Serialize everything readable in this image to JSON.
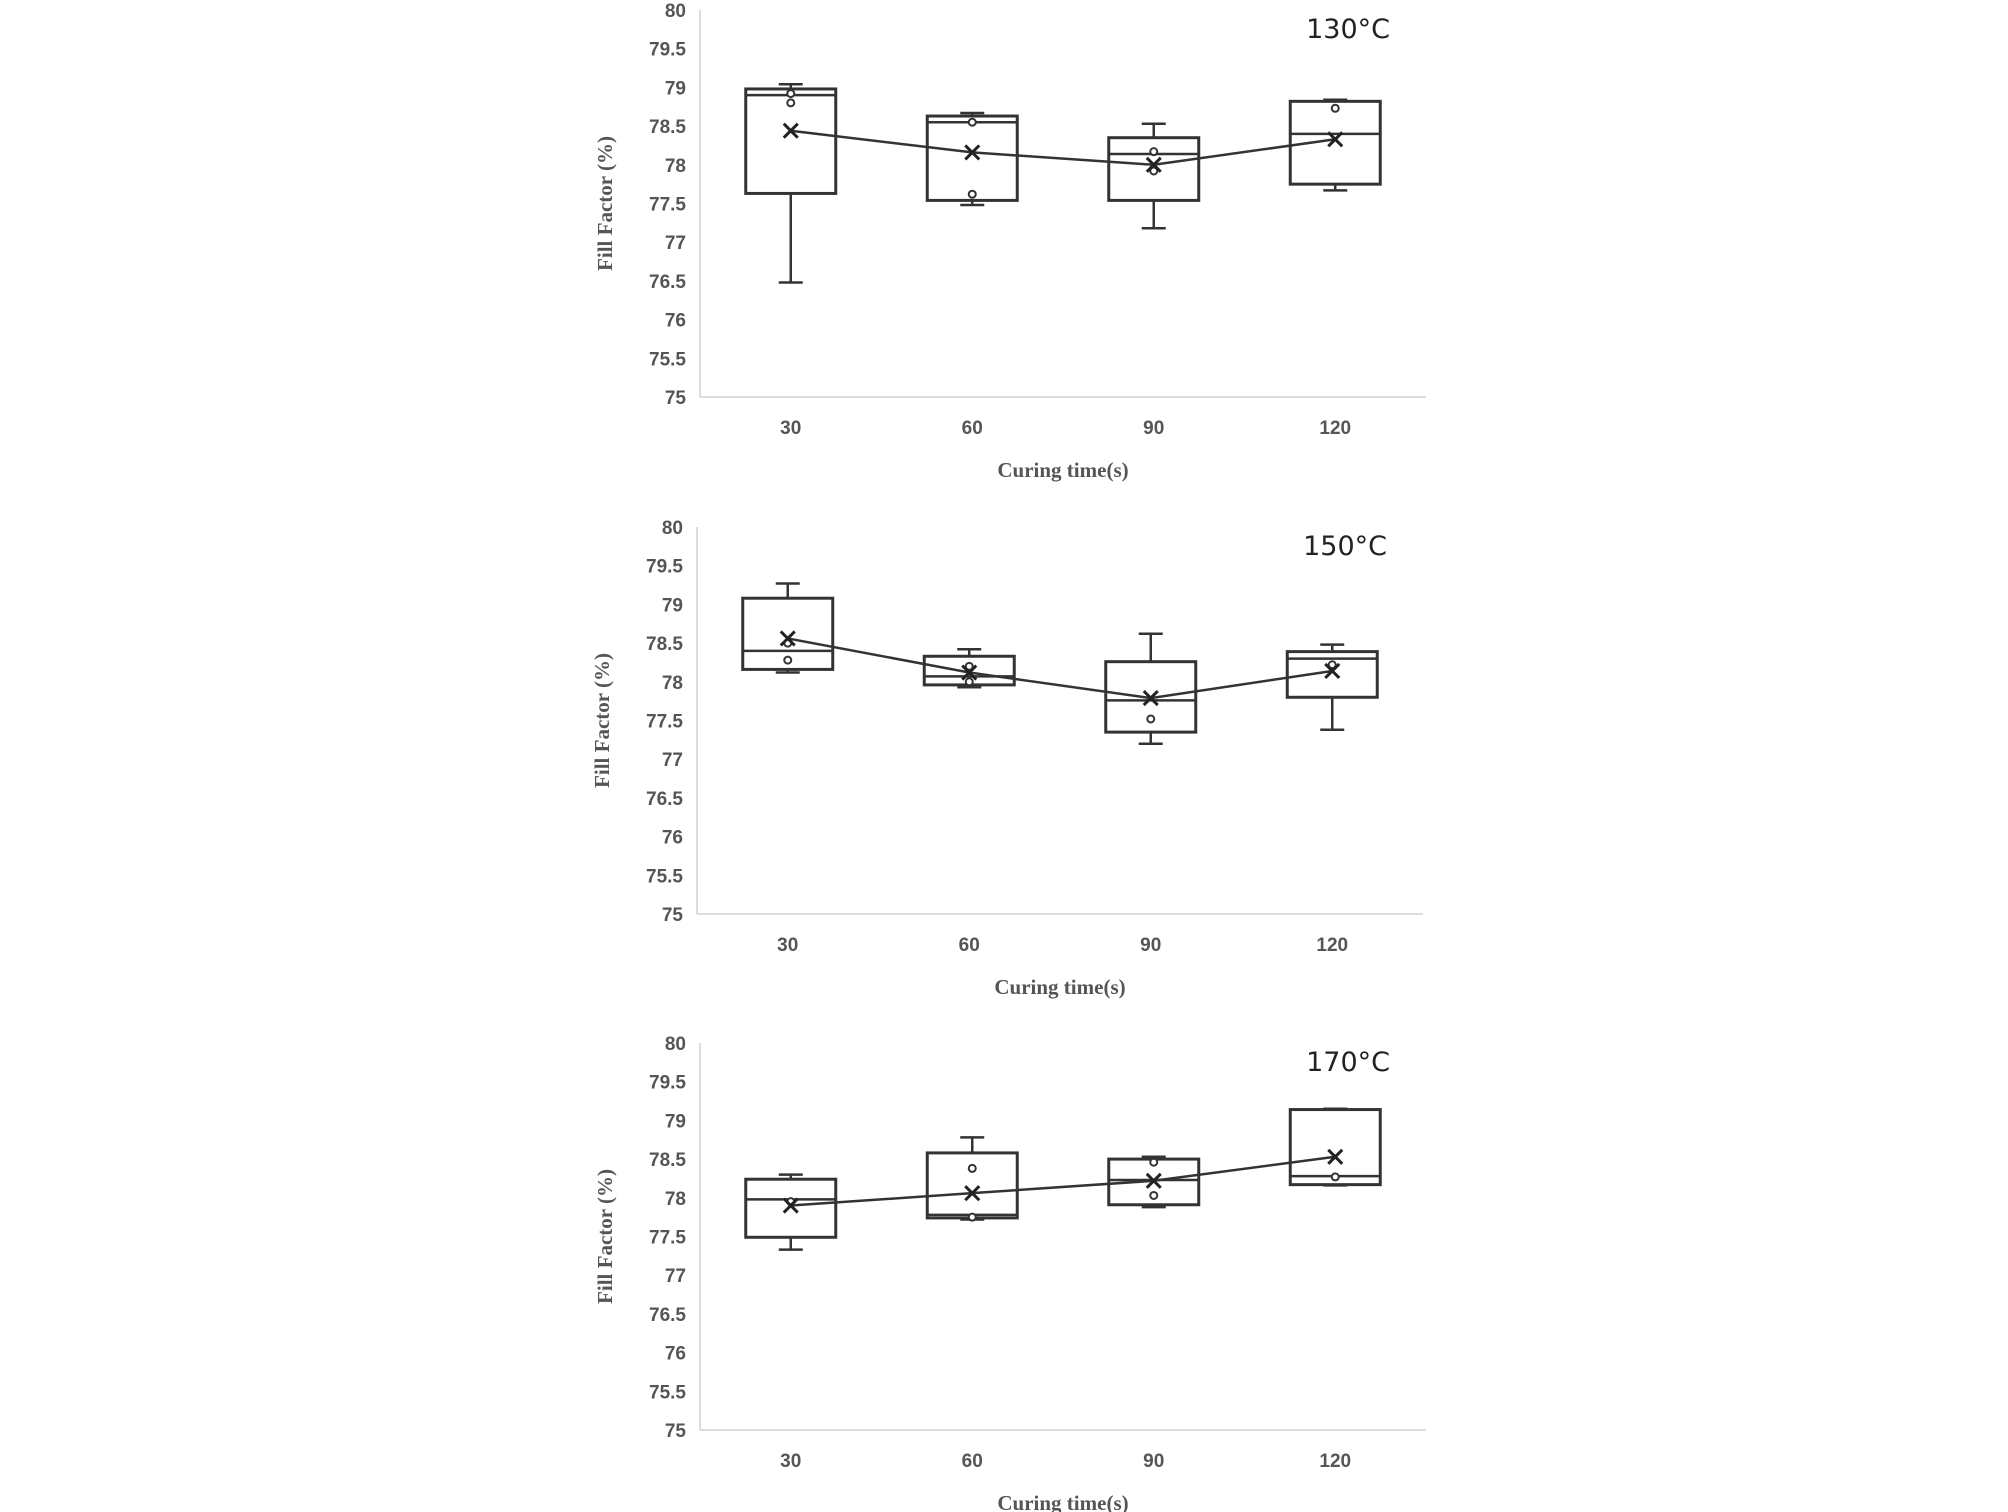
{
  "chart_data": [
    {
      "type": "box",
      "title": "130°C",
      "xlabel": "Curing time(s)",
      "ylabel": "Fill Factor (%)",
      "ylim": [
        75,
        80
      ],
      "yticks": [
        "75",
        "75.5",
        "76",
        "76.5",
        "77",
        "77.5",
        "78",
        "78.5",
        "79",
        "79.5",
        "80"
      ],
      "categories": [
        "30",
        "60",
        "90",
        "120"
      ],
      "grid": false,
      "boxes": [
        {
          "min": 76.48,
          "q1": 77.63,
          "median": 78.9,
          "q3": 78.98,
          "max": 79.04,
          "mean": 78.44,
          "points": [
            78.8,
            78.92
          ]
        },
        {
          "min": 77.48,
          "q1": 77.54,
          "median": 78.55,
          "q3": 78.63,
          "max": 78.67,
          "mean": 78.16,
          "points": [
            77.62,
            78.55
          ]
        },
        {
          "min": 77.18,
          "q1": 77.54,
          "median": 78.14,
          "q3": 78.35,
          "max": 78.53,
          "mean": 78.0,
          "points": [
            77.92,
            78.17
          ]
        },
        {
          "min": 77.67,
          "q1": 77.75,
          "median": 78.4,
          "q3": 78.82,
          "max": 78.84,
          "mean": 78.33,
          "points": [
            78.73
          ]
        }
      ]
    },
    {
      "type": "box",
      "title": "150°C",
      "xlabel": "Curing time(s)",
      "ylabel": "Fill Factor (%)",
      "ylim": [
        75,
        80
      ],
      "yticks": [
        "75",
        "75.5",
        "76",
        "76.5",
        "77",
        "77.5",
        "78",
        "78.5",
        "79",
        "79.5",
        "80"
      ],
      "categories": [
        "30",
        "60",
        "90",
        "120"
      ],
      "grid": false,
      "boxes": [
        {
          "min": 78.12,
          "q1": 78.16,
          "median": 78.4,
          "q3": 79.08,
          "max": 79.27,
          "mean": 78.56,
          "points": [
            78.28,
            78.5
          ]
        },
        {
          "min": 77.93,
          "q1": 77.96,
          "median": 78.07,
          "q3": 78.33,
          "max": 78.42,
          "mean": 78.12,
          "points": [
            78.0,
            78.2
          ]
        },
        {
          "min": 77.2,
          "q1": 77.35,
          "median": 77.76,
          "q3": 78.26,
          "max": 78.62,
          "mean": 77.79,
          "points": [
            77.52
          ]
        },
        {
          "min": 77.38,
          "q1": 77.8,
          "median": 78.3,
          "q3": 78.39,
          "max": 78.48,
          "mean": 78.14,
          "points": [
            78.22
          ]
        }
      ]
    },
    {
      "type": "box",
      "title": "170°C",
      "xlabel": "Curing time(s)",
      "ylabel": "Fill Factor (%)",
      "ylim": [
        75,
        80
      ],
      "yticks": [
        "75",
        "75.5",
        "76",
        "76.5",
        "77",
        "77.5",
        "78",
        "78.5",
        "79",
        "79.5",
        "80"
      ],
      "categories": [
        "30",
        "60",
        "90",
        "120"
      ],
      "grid": false,
      "boxes": [
        {
          "min": 77.33,
          "q1": 77.49,
          "median": 77.98,
          "q3": 78.24,
          "max": 78.3,
          "mean": 77.9,
          "points": [
            77.95
          ]
        },
        {
          "min": 77.72,
          "q1": 77.74,
          "median": 77.78,
          "q3": 78.58,
          "max": 78.78,
          "mean": 78.06,
          "points": [
            77.75,
            78.38
          ]
        },
        {
          "min": 77.88,
          "q1": 77.91,
          "median": 78.23,
          "q3": 78.5,
          "max": 78.53,
          "mean": 78.22,
          "points": [
            78.03,
            78.46
          ]
        },
        {
          "min": 78.16,
          "q1": 78.17,
          "median": 78.28,
          "q3": 79.14,
          "max": 79.15,
          "mean": 78.53,
          "points": [
            78.27
          ]
        }
      ]
    }
  ]
}
